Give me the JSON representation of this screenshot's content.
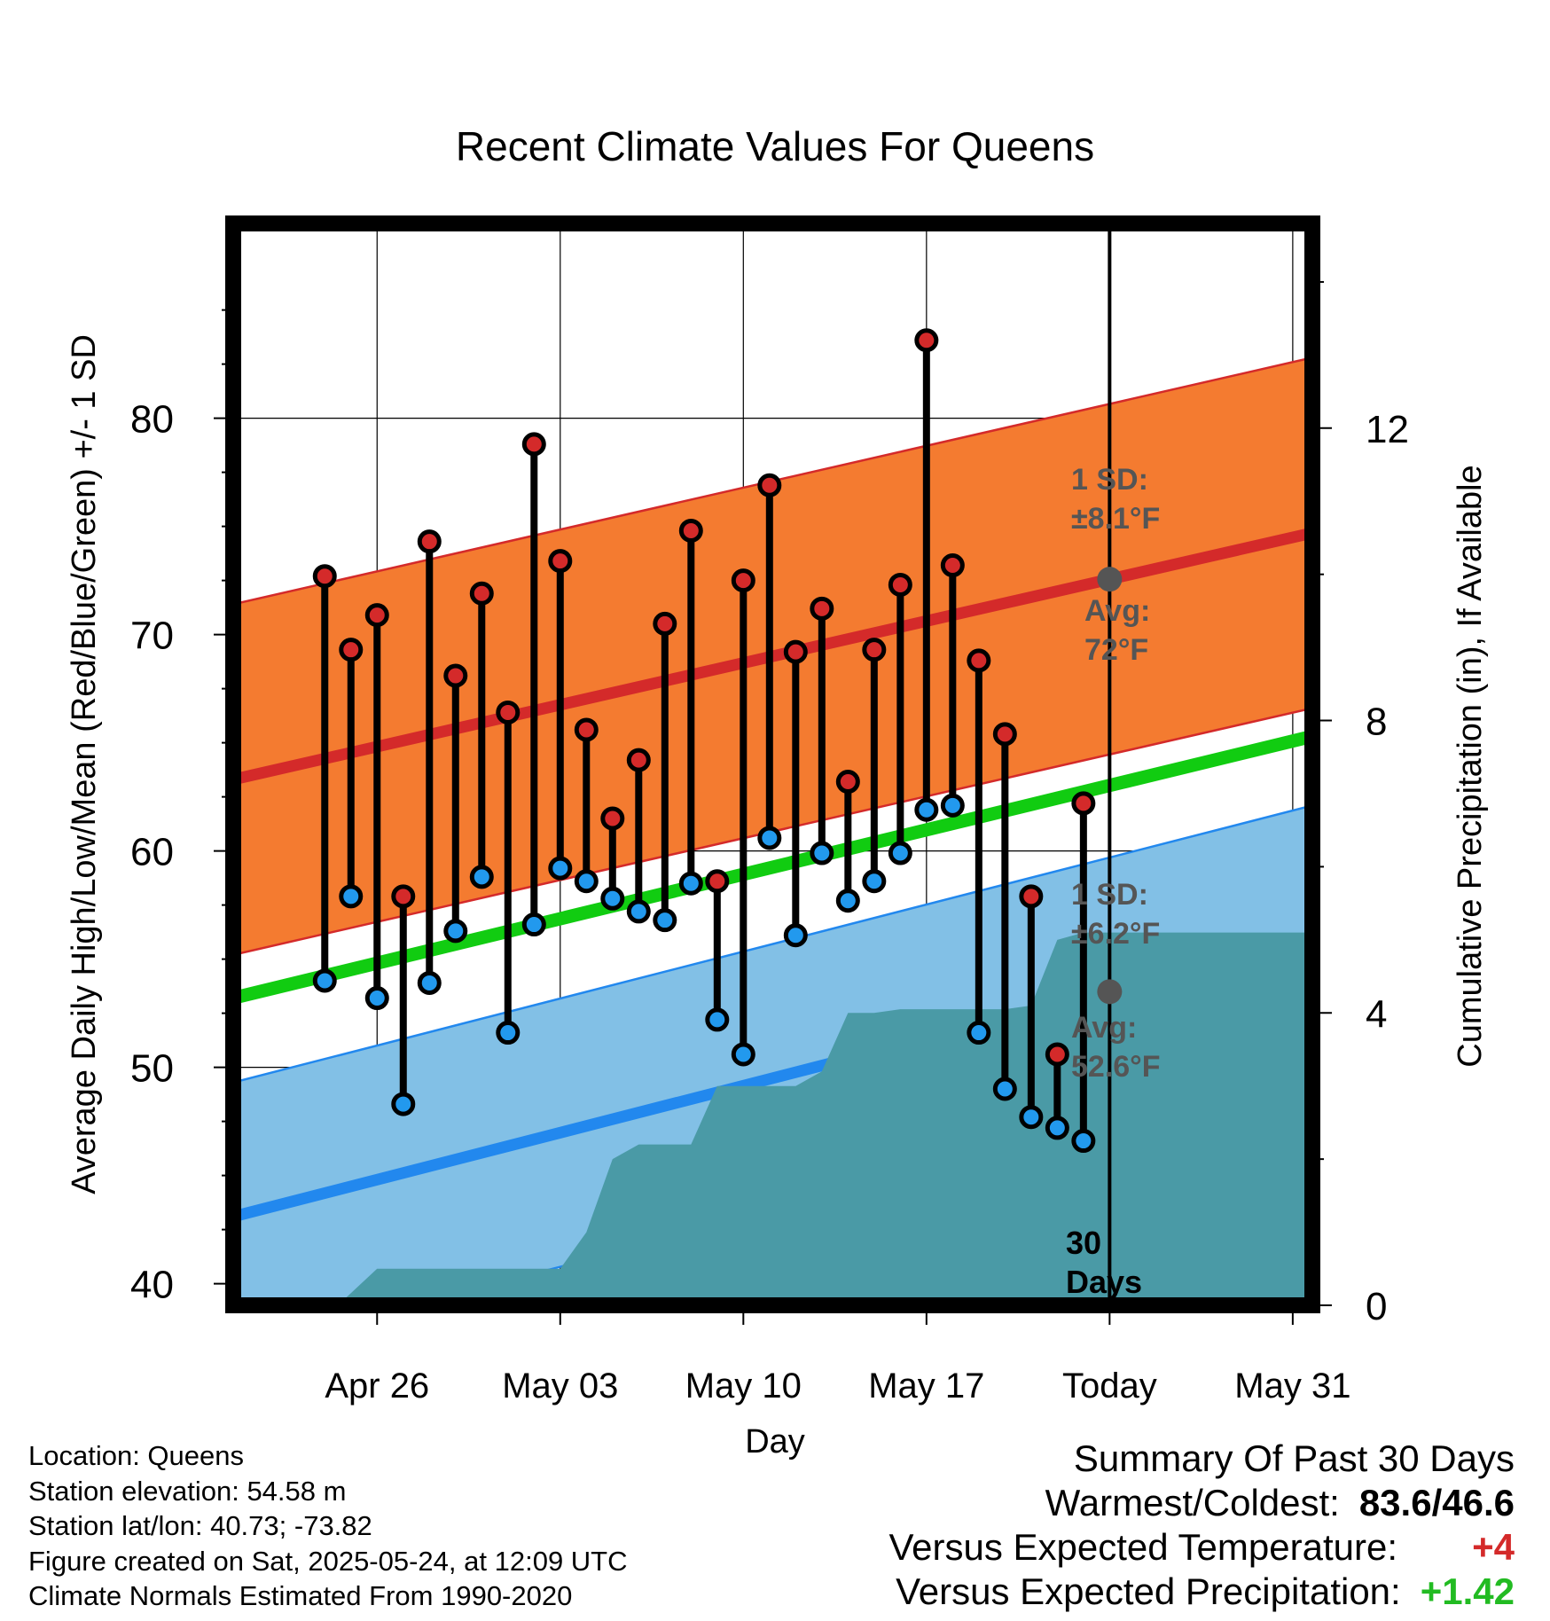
{
  "colors": {
    "high_band": "#f47b30",
    "high_band_edge": "#d42a2a",
    "high_avg_line": "#d42a2a",
    "low_band": "#82c0e6",
    "low_band_edge": "#2288ee",
    "low_avg_line": "#2288ee",
    "mean_line": "#11cc11",
    "precip_fill": "#4a9aa6",
    "high_marker": "#d42a2a",
    "low_marker": "#2299ee",
    "avg_marker": "#555555",
    "annotation_text": "#555555"
  },
  "chart_data": {
    "type": "line",
    "title": "Recent Climate Values For Queens",
    "xlabel": "Day",
    "ylabel": "Average Daily High/Low/Mean (Red/Blue/Green) +/- 1 SD",
    "y2label": "Cumulative Precipitation (in), If Available",
    "ylim": [
      39,
      89
    ],
    "y_ticks": [
      40,
      50,
      60,
      70,
      80
    ],
    "y2lim": [
      0,
      14.8
    ],
    "y2_ticks": [
      0,
      4,
      8,
      12
    ],
    "x_range_days": [
      -33.5,
      7.75
    ],
    "x_ticks": [
      {
        "day": -28,
        "label": "Apr 26"
      },
      {
        "day": -21,
        "label": "May 03"
      },
      {
        "day": -14,
        "label": "May 10"
      },
      {
        "day": -7,
        "label": "May 17"
      },
      {
        "day": 0,
        "label": "Today"
      },
      {
        "day": 7,
        "label": "May 31"
      }
    ],
    "grid": true,
    "normals": {
      "high_avg": [
        63.3,
        74.7
      ],
      "high_sd": 8.1,
      "low_avg": [
        43.1,
        55.9
      ],
      "low_sd": 6.2,
      "mean_avg": [
        53.2,
        65.3
      ]
    },
    "series": [
      {
        "name": "High",
        "values": [
          72.7,
          69.3,
          70.9,
          57.9,
          74.3,
          68.1,
          71.9,
          66.4,
          78.8,
          73.4,
          65.6,
          61.5,
          64.2,
          70.5,
          74.8,
          58.6,
          72.5,
          76.9,
          69.2,
          71.2,
          63.2,
          69.3,
          72.3,
          83.6,
          73.2,
          68.8,
          65.4,
          57.9,
          50.6,
          62.2
        ]
      },
      {
        "name": "Low",
        "values": [
          54.0,
          57.9,
          53.2,
          48.3,
          53.9,
          56.3,
          58.8,
          51.6,
          56.6,
          59.2,
          58.6,
          57.8,
          57.2,
          56.8,
          58.5,
          52.2,
          50.6,
          60.6,
          56.1,
          59.9,
          57.7,
          58.6,
          59.9,
          61.9,
          62.1,
          51.6,
          49.0,
          47.7,
          47.2,
          46.6
        ]
      },
      {
        "name": "Cumulative Precipitation",
        "days": [
          -29.5,
          -28,
          -21,
          -20,
          -19,
          -18,
          -17,
          -16,
          -15,
          -14,
          -12,
          -11,
          -10,
          -9,
          -8,
          -7,
          -6,
          -5,
          -4,
          -3,
          -2,
          -1,
          0,
          7.75
        ],
        "values": [
          0,
          0.5,
          0.5,
          1.0,
          2.0,
          2.2,
          2.2,
          2.2,
          3.0,
          3.0,
          3.0,
          3.2,
          4.0,
          4.0,
          4.05,
          4.05,
          4.05,
          4.05,
          4.05,
          4.1,
          5.0,
          5.1,
          5.1,
          5.1
        ]
      }
    ],
    "today_line_label": [
      "30",
      "Days"
    ],
    "annotations": {
      "high_sd": [
        "1 SD:",
        "±8.1°F"
      ],
      "high_avg": [
        "Avg:",
        "72°F"
      ],
      "low_sd": [
        "1 SD:",
        "±6.2°F"
      ],
      "low_avg": [
        "Avg:",
        "52.6°F"
      ]
    }
  },
  "info": {
    "location": "Location: Queens",
    "elevation": "Station elevation: 54.58 m",
    "latlon": "Station lat/lon: 40.73; -73.82",
    "created": "Figure created on Sat, 2025-05-24, at 12:09 UTC",
    "normals": "Climate Normals Estimated From 1990-2020"
  },
  "summary": {
    "title": "Summary Of Past 30 Days",
    "warm_label": "Warmest/Coldest:",
    "warm_value": "83.6/46.6",
    "temp_label": "Versus Expected Temperature:",
    "temp_value": "+4",
    "precip_label": "Versus Expected Precipitation:",
    "precip_value": "+1.42"
  }
}
